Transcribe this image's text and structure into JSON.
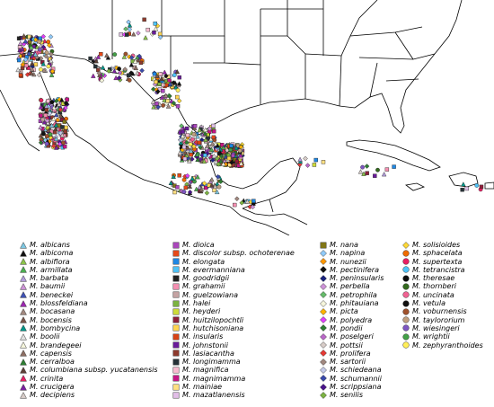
{
  "legend": {
    "col1": [
      {
        "label": "M. albicans",
        "shape": "triangle",
        "color": "#7ec8e3"
      },
      {
        "label": "M. albicoma",
        "shape": "triangle",
        "color": "#111111"
      },
      {
        "label": "M. albiflora",
        "shape": "triangle",
        "color": "#8bc34a"
      },
      {
        "label": "M. armillata",
        "shape": "triangle",
        "color": "#4caf50"
      },
      {
        "label": "M. barbata",
        "shape": "triangle",
        "color": "#b39ddb"
      },
      {
        "label": "M. baumii",
        "shape": "triangle",
        "color": "#ce93d8"
      },
      {
        "label": "M. beneckei",
        "shape": "triangle",
        "color": "#3f51b5"
      },
      {
        "label": "M. blossfeldiana",
        "shape": "triangle",
        "color": "#9c27b0"
      },
      {
        "label": "M. bocasana",
        "shape": "triangle",
        "color": "#a1887f"
      },
      {
        "label": "M. bocensis",
        "shape": "triangle",
        "color": "#795548"
      },
      {
        "label": "M. bombycina",
        "shape": "triangle",
        "color": "#009688"
      },
      {
        "label": "M. boolii",
        "shape": "triangle",
        "color": "#e0e0e0"
      },
      {
        "label": "M. brandegeei",
        "shape": "triangle",
        "color": "#f5f5dc"
      },
      {
        "label": "M. capensis",
        "shape": "triangle",
        "color": "#8d6e63"
      },
      {
        "label": "M. cerralboa",
        "shape": "triangle",
        "color": "#2e7d32"
      },
      {
        "label": "M. columbiana subsp. yucatanensis",
        "shape": "triangle",
        "color": "#5d4037"
      },
      {
        "label": "M. crinita",
        "shape": "triangle",
        "color": "#e91e63"
      },
      {
        "label": "M. crucigera",
        "shape": "triangle",
        "color": "#7b1fa2"
      },
      {
        "label": "M. decipiens",
        "shape": "triangle",
        "color": "#d7ccc8"
      }
    ],
    "col2": [
      {
        "label": "M. dioica",
        "shape": "square",
        "color": "#ab47bc"
      },
      {
        "label": "M. discolor subsp. ochoterenae",
        "shape": "square",
        "color": "#e64a19"
      },
      {
        "label": "M. elongata",
        "shape": "square",
        "color": "#1e88e5"
      },
      {
        "label": "M. evermanniana",
        "shape": "square",
        "color": "#4fc3f7"
      },
      {
        "label": "M. goodridgii",
        "shape": "square",
        "color": "#222222"
      },
      {
        "label": "M. grahamii",
        "shape": "square",
        "color": "#f48fb1"
      },
      {
        "label": "M. guelzowiana",
        "shape": "square",
        "color": "#c5a3a3"
      },
      {
        "label": "M. halei",
        "shape": "square",
        "color": "#7cb342"
      },
      {
        "label": "M. heyderi",
        "shape": "square",
        "color": "#cddc39"
      },
      {
        "label": "M. huitzilopochtli",
        "shape": "square",
        "color": "#8d1f3a"
      },
      {
        "label": "M. hutchisoniana",
        "shape": "square",
        "color": "#ffd54f"
      },
      {
        "label": "M. insularis",
        "shape": "square",
        "color": "#d84315"
      },
      {
        "label": "M. johnstonii",
        "shape": "square",
        "color": "#6a1b9a"
      },
      {
        "label": "M. lasiacantha",
        "shape": "square",
        "color": "#8e3b2e"
      },
      {
        "label": "M. longimamma",
        "shape": "square",
        "color": "#263238"
      },
      {
        "label": "M. magnifica",
        "shape": "square",
        "color": "#f8bbd0"
      },
      {
        "label": "M. magnimamma",
        "shape": "square",
        "color": "#c71585"
      },
      {
        "label": "M. mainiae",
        "shape": "square",
        "color": "#ffe082"
      },
      {
        "label": "M. mazatlanensis",
        "shape": "square",
        "color": "#e1bee7"
      }
    ],
    "col3": [
      {
        "label": "M. nana",
        "shape": "square",
        "color": "#827717"
      },
      {
        "label": "M. napina",
        "shape": "diamond",
        "color": "#90caf9"
      },
      {
        "label": "M. nunezii",
        "shape": "diamond",
        "color": "#ff9800"
      },
      {
        "label": "M. pectinifera",
        "shape": "diamond",
        "color": "#111111"
      },
      {
        "label": "M. peninsularis",
        "shape": "diamond",
        "color": "#1a237e"
      },
      {
        "label": "M. perbella",
        "shape": "diamond",
        "color": "#ce93d8"
      },
      {
        "label": "M. petrophila",
        "shape": "diamond",
        "color": "#66bb6a"
      },
      {
        "label": "M. phitauiana",
        "shape": "diamond",
        "color": "#f5f5dc"
      },
      {
        "label": "M. picta",
        "shape": "diamond",
        "color": "#ffb300"
      },
      {
        "label": "M. polyedra",
        "shape": "diamond",
        "color": "#e040fb"
      },
      {
        "label": "M. pondii",
        "shape": "diamond",
        "color": "#2e7d32"
      },
      {
        "label": "M. poselgeri",
        "shape": "diamond",
        "color": "#ba68c8"
      },
      {
        "label": "M. pottsii",
        "shape": "diamond",
        "color": "#d7ccc8"
      },
      {
        "label": "M. prolifera",
        "shape": "diamond",
        "color": "#e53935"
      },
      {
        "label": "M. sartorii",
        "shape": "diamond",
        "color": "#a1887f"
      },
      {
        "label": "M. schiedeana",
        "shape": "diamond",
        "color": "#c5cae9"
      },
      {
        "label": "M. schumannii",
        "shape": "diamond",
        "color": "#3949ab"
      },
      {
        "label": "M. scrippsiana",
        "shape": "diamond",
        "color": "#4a148c"
      },
      {
        "label": "M. senilis",
        "shape": "diamond",
        "color": "#7cb342"
      }
    ],
    "col4": [
      {
        "label": "M. solisioides",
        "shape": "diamond",
        "color": "#fdd835"
      },
      {
        "label": "M. sphacelata",
        "shape": "circle",
        "color": "#ef6c00"
      },
      {
        "label": "M. supertexta",
        "shape": "circle",
        "color": "#e91e63"
      },
      {
        "label": "M. tetrancistra",
        "shape": "circle",
        "color": "#4fc3f7"
      },
      {
        "label": "M. theresae",
        "shape": "circle",
        "color": "#0d0d0d"
      },
      {
        "label": "M. thornberi",
        "shape": "circle",
        "color": "#33691e"
      },
      {
        "label": "M. uncinata",
        "shape": "circle",
        "color": "#f06292"
      },
      {
        "label": "M. vetula",
        "shape": "circle",
        "color": "#111111"
      },
      {
        "label": "M. voburnensis",
        "shape": "circle",
        "color": "#a0522d"
      },
      {
        "label": "M. taylororium",
        "shape": "circle",
        "color": "#c0a080"
      },
      {
        "label": "M. wiesingeri",
        "shape": "circle",
        "color": "#7e57c2"
      },
      {
        "label": "M. wrightii",
        "shape": "circle",
        "color": "#43a047"
      },
      {
        "label": "M. zephyranthoides",
        "shape": "circle",
        "color": "#ffee58"
      }
    ]
  }
}
